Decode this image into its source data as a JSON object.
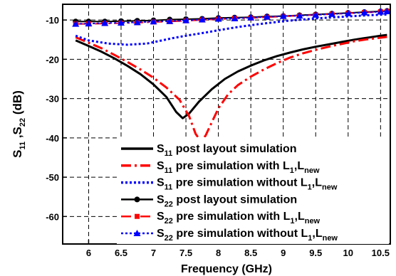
{
  "chart_data": {
    "type": "line",
    "title": "",
    "xlabel": "Frequency (GHz)",
    "ylabel": {
      "base1": "S",
      "sub1": "11",
      "sep": " ,",
      "base2": "S",
      "sub2": "22",
      "unit": " (dB)"
    },
    "xlim": [
      5.6,
      10.65
    ],
    "ylim": [
      -67,
      -6
    ],
    "x_ticks": [
      6,
      6.5,
      7,
      7.5,
      8,
      8.5,
      9,
      9.5,
      10,
      10.5
    ],
    "x_tick_labels": [
      "6",
      "6.5",
      "7",
      "7.5",
      "8",
      "8.5",
      "9",
      "9.5",
      "10",
      "10.5"
    ],
    "y_ticks": [
      -10,
      -20,
      -30,
      -40,
      -50,
      -60
    ],
    "y_tick_labels": [
      "-10",
      "-20",
      "-30",
      "-40",
      "-50",
      "-60"
    ],
    "grid": true,
    "legend_position": "bottom-right",
    "series": [
      {
        "legend": {
          "s": "S",
          "sub": "11",
          "text": " post layout simulation"
        },
        "color": "#000000",
        "dash": "solid",
        "width": 3,
        "marker": "none",
        "points": [
          [
            5.8,
            -15.2
          ],
          [
            6,
            -16.6
          ],
          [
            6.2,
            -18.1
          ],
          [
            6.4,
            -19.8
          ],
          [
            6.6,
            -21.7
          ],
          [
            6.8,
            -23.8
          ],
          [
            7,
            -26.4
          ],
          [
            7.2,
            -29.6
          ],
          [
            7.35,
            -33.4
          ],
          [
            7.45,
            -35.0
          ],
          [
            7.55,
            -33.8
          ],
          [
            7.7,
            -30.8
          ],
          [
            7.9,
            -27.6
          ],
          [
            8.1,
            -25.0
          ],
          [
            8.3,
            -23.1
          ],
          [
            8.5,
            -21.6
          ],
          [
            8.7,
            -20.3
          ],
          [
            8.9,
            -19.2
          ],
          [
            9.1,
            -18.3
          ],
          [
            9.3,
            -17.5
          ],
          [
            9.5,
            -16.8
          ],
          [
            9.7,
            -16.2
          ],
          [
            9.9,
            -15.6
          ],
          [
            10.1,
            -15.0
          ],
          [
            10.3,
            -14.5
          ],
          [
            10.5,
            -14.0
          ],
          [
            10.6,
            -13.8
          ]
        ]
      },
      {
        "legend": {
          "s": "S",
          "sub": "11",
          "text": " pre simulation with L",
          "sub2": "1",
          "text2": ",L",
          "sub3": "new"
        },
        "color": "#ff0000",
        "dash": "dashdot",
        "width": 3,
        "marker": "none",
        "points": [
          [
            5.8,
            -14.4
          ],
          [
            6,
            -15.8
          ],
          [
            6.2,
            -17.2
          ],
          [
            6.4,
            -18.9
          ],
          [
            6.6,
            -20.7
          ],
          [
            6.8,
            -22.6
          ],
          [
            7,
            -24.7
          ],
          [
            7.2,
            -27.2
          ],
          [
            7.4,
            -30.3
          ],
          [
            7.55,
            -34.5
          ],
          [
            7.65,
            -39.0
          ],
          [
            7.72,
            -40.6
          ],
          [
            7.8,
            -39.5
          ],
          [
            7.9,
            -36.0
          ],
          [
            8.0,
            -32.5
          ],
          [
            8.15,
            -28.9
          ],
          [
            8.3,
            -26.6
          ],
          [
            8.5,
            -24.4
          ],
          [
            8.7,
            -22.6
          ],
          [
            8.9,
            -21.0
          ],
          [
            9.1,
            -19.6
          ],
          [
            9.3,
            -18.5
          ],
          [
            9.5,
            -17.6
          ],
          [
            9.7,
            -16.8
          ],
          [
            9.9,
            -16.1
          ],
          [
            10.1,
            -15.4
          ],
          [
            10.3,
            -14.9
          ],
          [
            10.5,
            -14.5
          ],
          [
            10.6,
            -14.3
          ]
        ]
      },
      {
        "legend": {
          "s": "S",
          "sub": "11",
          "text": " pre simulation without L",
          "sub2": "1",
          "text2": ",L",
          "sub3": "new"
        },
        "color": "#0000ff",
        "dash": "dotted",
        "width": 3,
        "marker": "none",
        "points": [
          [
            5.8,
            -14.0
          ],
          [
            6,
            -15.2
          ],
          [
            6.3,
            -16.0
          ],
          [
            6.6,
            -16.3
          ],
          [
            6.9,
            -16.0
          ],
          [
            7.1,
            -15.3
          ],
          [
            7.3,
            -14.6
          ],
          [
            7.5,
            -14.0
          ],
          [
            7.8,
            -13.2
          ],
          [
            8.0,
            -12.6
          ],
          [
            8.3,
            -11.8
          ],
          [
            8.6,
            -11.1
          ],
          [
            9.0,
            -10.3
          ],
          [
            9.5,
            -9.6
          ],
          [
            10.0,
            -9.1
          ],
          [
            10.3,
            -8.8
          ],
          [
            10.6,
            -8.6
          ]
        ]
      },
      {
        "legend": {
          "s": "S",
          "sub": "22",
          "text": " post layout simulation"
        },
        "color": "#000000",
        "dash": "solid",
        "width": 2,
        "marker": "circle",
        "points": [
          [
            5.8,
            -10.4
          ],
          [
            6,
            -10.4
          ],
          [
            6.25,
            -10.4
          ],
          [
            6.5,
            -10.3
          ],
          [
            6.75,
            -10.2
          ],
          [
            7,
            -10.1
          ],
          [
            7.25,
            -9.9
          ],
          [
            7.5,
            -9.8
          ],
          [
            7.75,
            -9.7
          ],
          [
            8,
            -9.5
          ],
          [
            8.25,
            -9.4
          ],
          [
            8.5,
            -9.3
          ],
          [
            8.75,
            -9.1
          ],
          [
            9,
            -9.0
          ],
          [
            9.25,
            -8.8
          ],
          [
            9.5,
            -8.6
          ],
          [
            9.75,
            -8.4
          ],
          [
            10,
            -8.2
          ],
          [
            10.25,
            -8.0
          ],
          [
            10.5,
            -7.8
          ],
          [
            10.6,
            -7.7
          ]
        ]
      },
      {
        "legend": {
          "s": "S",
          "sub": "22",
          "text": " pre simulation with L",
          "sub2": "1",
          "text2": ",L",
          "sub3": "new"
        },
        "color": "#ff0000",
        "dash": "dashdot",
        "width": 2,
        "marker": "square",
        "points": [
          [
            5.8,
            -11.0
          ],
          [
            6,
            -11.0
          ],
          [
            6.25,
            -10.9
          ],
          [
            6.5,
            -10.8
          ],
          [
            6.75,
            -10.7
          ],
          [
            7,
            -10.5
          ],
          [
            7.25,
            -10.4
          ],
          [
            7.5,
            -10.2
          ],
          [
            7.75,
            -10.0
          ],
          [
            8,
            -9.8
          ],
          [
            8.25,
            -9.6
          ],
          [
            8.5,
            -9.5
          ],
          [
            8.75,
            -9.3
          ],
          [
            9,
            -9.1
          ],
          [
            9.25,
            -8.9
          ],
          [
            9.5,
            -8.7
          ],
          [
            9.75,
            -8.5
          ],
          [
            10,
            -8.3
          ],
          [
            10.25,
            -8.1
          ],
          [
            10.5,
            -7.9
          ],
          [
            10.6,
            -7.8
          ]
        ]
      },
      {
        "legend": {
          "s": "S",
          "sub": "22",
          "text": " pre simulation without L",
          "sub2": "1",
          "text2": ",L",
          "sub3": "new"
        },
        "color": "#0000ff",
        "dash": "dotted",
        "width": 2,
        "marker": "triangle",
        "points": [
          [
            5.8,
            -11.0
          ],
          [
            6,
            -10.9
          ],
          [
            6.25,
            -10.8
          ],
          [
            6.5,
            -10.7
          ],
          [
            6.75,
            -10.6
          ],
          [
            7,
            -10.4
          ],
          [
            7.25,
            -10.3
          ],
          [
            7.5,
            -10.1
          ],
          [
            7.75,
            -9.9
          ],
          [
            8,
            -9.7
          ],
          [
            8.25,
            -9.6
          ],
          [
            8.5,
            -9.4
          ],
          [
            8.75,
            -9.2
          ],
          [
            9,
            -9.0
          ],
          [
            9.25,
            -8.9
          ],
          [
            9.5,
            -8.7
          ],
          [
            9.75,
            -8.5
          ],
          [
            10,
            -8.3
          ],
          [
            10.25,
            -8.1
          ],
          [
            10.5,
            -7.9
          ],
          [
            10.6,
            -7.8
          ]
        ]
      }
    ]
  }
}
